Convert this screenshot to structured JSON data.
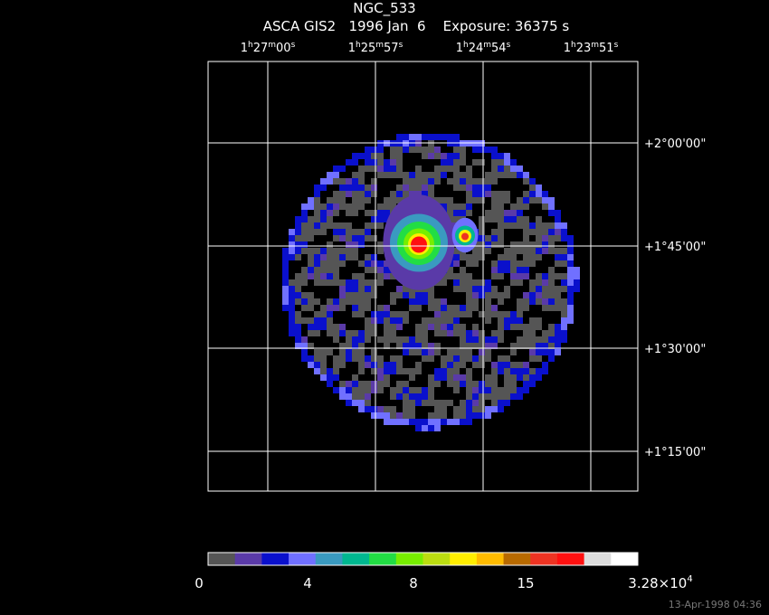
{
  "header": {
    "title": "NGC_533",
    "subtitle": "ASCA GIS2   1996 Jan  6    Exposure: 36375 s"
  },
  "ra_ticks": [
    [
      "1",
      "h",
      "27",
      "m",
      "00",
      "s"
    ],
    [
      "1",
      "h",
      "25",
      "m",
      "57",
      "s"
    ],
    [
      "1",
      "h",
      "24",
      "m",
      "54",
      "s"
    ],
    [
      "1",
      "h",
      "23",
      "m",
      "51",
      "s"
    ]
  ],
  "dec_ticks": [
    "+2°00'00\"",
    "+1°45'00\"",
    "+1°30'00\"",
    "+1°15'00\""
  ],
  "colorbar": {
    "colors": [
      "#555555",
      "#5a3aa8",
      "#0a10cc",
      "#7070ff",
      "#3a9ac0",
      "#00b890",
      "#22dd44",
      "#77ee00",
      "#bbdd11",
      "#ffee00",
      "#ffbb00",
      "#b86a00",
      "#ee3322",
      "#ff1010",
      "#dddddd",
      "#ffffff"
    ],
    "labels": [
      [
        "0"
      ],
      [
        "4"
      ],
      [
        "8"
      ],
      [
        "15"
      ],
      [
        "3.28×10",
        "4"
      ]
    ]
  },
  "timestamp": "13-Apr-1998 04:36"
}
